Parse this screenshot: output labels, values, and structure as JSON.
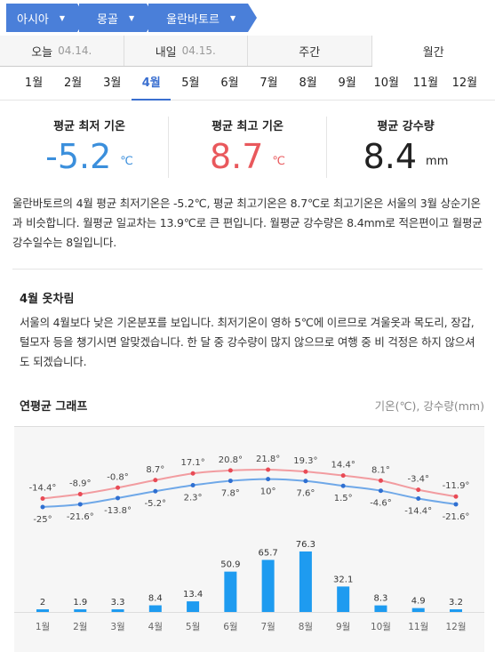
{
  "breadcrumb": [
    "아시아",
    "몽골",
    "울란바토르"
  ],
  "tabs": [
    {
      "label": "오늘",
      "date": "04.14."
    },
    {
      "label": "내일",
      "date": "04.15."
    },
    {
      "label": "주간",
      "date": ""
    },
    {
      "label": "월간",
      "date": ""
    }
  ],
  "months": [
    "1월",
    "2월",
    "3월",
    "4월",
    "5월",
    "6월",
    "7월",
    "8월",
    "9월",
    "10월",
    "11월",
    "12월"
  ],
  "summary": {
    "min": {
      "label": "평균 최저 기온",
      "value": "-5.2",
      "unit": "℃"
    },
    "max": {
      "label": "평균 최고 기온",
      "value": "8.7",
      "unit": "℃"
    },
    "rain": {
      "label": "평균 강수량",
      "value": "8.4",
      "unit": "mm"
    }
  },
  "description": "울란바토르의 4월 평균 최저기온은 -5.2℃, 평균 최고기온은 8.7℃로 최고기온은 서울의 3월 상순기온과 비슷합니다. 월평균 일교차는 13.9℃로 큰 편입니다. 월평균 강수량은 8.4mm로 적은편이고 월평균 강수일수는 8일입니다.",
  "clothing": {
    "title": "4월 옷차림",
    "text": "서울의 4월보다 낮은 기온분포를 보입니다. 최저기온이 영하 5℃에 이르므로 겨울옷과 목도리, 장갑, 털모자 등을 챙기시면 알맞겠습니다. 한 달 중 강수량이 많지 않으므로 여행 중 비 걱정은 하지 않으셔도 되겠습니다."
  },
  "graph": {
    "title": "연평균 그래프",
    "unit_label": "기온(℃), 강수량(mm)"
  },
  "colors": {
    "accent": "#4a7fd9",
    "max_line": "#f29ca0",
    "min_line": "#6fa8e8",
    "bar": "#1e9bf0"
  },
  "chart_data": {
    "type": "line+bar",
    "categories": [
      "1월",
      "2월",
      "3월",
      "4월",
      "5월",
      "6월",
      "7월",
      "8월",
      "9월",
      "10월",
      "11월",
      "12월"
    ],
    "max_temp": [
      -14.4,
      -8.9,
      -0.8,
      8.7,
      17.1,
      20.8,
      21.8,
      19.3,
      14.4,
      8.1,
      -3.4,
      -11.9
    ],
    "min_temp": [
      -25,
      -21.6,
      -13.8,
      -5.2,
      2.3,
      7.8,
      10,
      7.6,
      1.5,
      -4.6,
      -14.4,
      -21.6
    ],
    "max_labels": [
      "-14.4°",
      "-8.9°",
      "-0.8°",
      "8.7°",
      "17.1°",
      "20.8°",
      "21.8°",
      "19.3°",
      "14.4°",
      "8.1°",
      "-3.4°",
      "-11.9°"
    ],
    "min_labels": [
      "-25°",
      "-21.6°",
      "-13.8°",
      "-5.2°",
      "2.3°",
      "7.8°",
      "10°",
      "7.6°",
      "1.5°",
      "-4.6°",
      "-14.4°",
      "-21.6°"
    ],
    "precip": [
      2,
      1.9,
      3.3,
      8.4,
      13.4,
      50.9,
      65.7,
      76.3,
      32.1,
      8.3,
      4.9,
      3.2
    ],
    "precip_labels": [
      "2",
      "1.9",
      "3.3",
      "8.4",
      "13.4",
      "50.9",
      "65.7",
      "76.3",
      "32.1",
      "8.3",
      "4.9",
      "3.2"
    ]
  }
}
